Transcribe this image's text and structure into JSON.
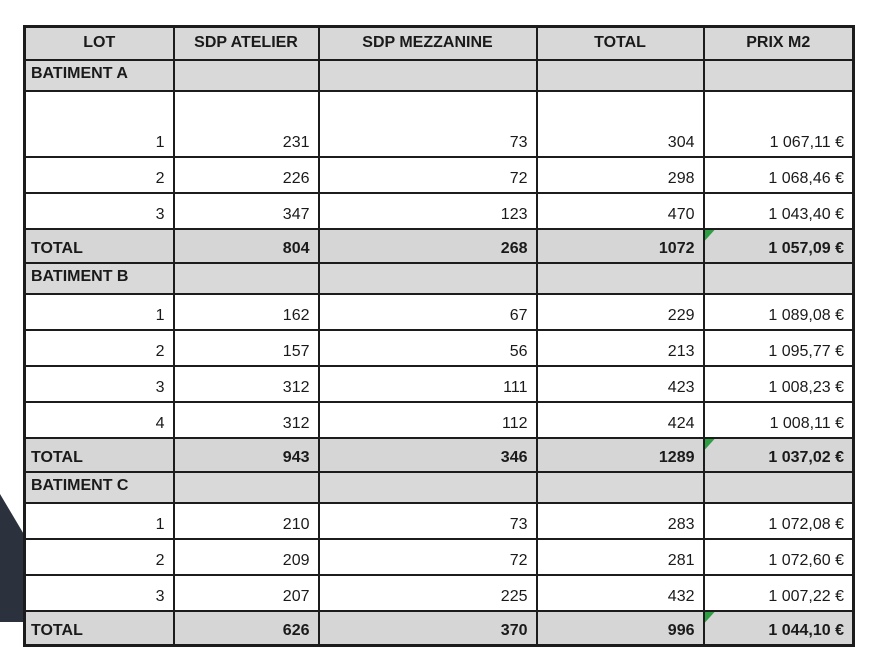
{
  "table": {
    "columns": [
      "LOT",
      "SDP ATELIER",
      "SDP MEZZANINE",
      "TOTAL",
      "PRIX M2"
    ],
    "rows": [
      {
        "type": "section",
        "cells": [
          "BATIMENT A",
          "",
          "",
          "",
          ""
        ]
      },
      {
        "type": "data",
        "tall": true,
        "cells": [
          "1",
          "231",
          "73",
          "304",
          "1 067,11 €"
        ]
      },
      {
        "type": "data",
        "cells": [
          "2",
          "226",
          "72",
          "298",
          "1 068,46 €"
        ]
      },
      {
        "type": "data",
        "cells": [
          "3",
          "347",
          "123",
          "470",
          "1 043,40 €"
        ]
      },
      {
        "type": "total",
        "flag": true,
        "cells": [
          "TOTAL",
          "804",
          "268",
          "1072",
          "1 057,09 €"
        ]
      },
      {
        "type": "section",
        "cells": [
          "BATIMENT B",
          "",
          "",
          "",
          ""
        ]
      },
      {
        "type": "data",
        "cells": [
          "1",
          "162",
          "67",
          "229",
          "1 089,08 €"
        ]
      },
      {
        "type": "data",
        "cells": [
          "2",
          "157",
          "56",
          "213",
          "1 095,77 €"
        ]
      },
      {
        "type": "data",
        "cells": [
          "3",
          "312",
          "111",
          "423",
          "1 008,23 €"
        ]
      },
      {
        "type": "data",
        "cells": [
          "4",
          "312",
          "112",
          "424",
          "1 008,11 €"
        ]
      },
      {
        "type": "total",
        "flag": true,
        "cells": [
          "TOTAL",
          "943",
          "346",
          "1289",
          "1 037,02 €"
        ]
      },
      {
        "type": "section",
        "cells": [
          "BATIMENT C",
          "",
          "",
          "",
          ""
        ]
      },
      {
        "type": "data",
        "cells": [
          "1",
          "210",
          "73",
          "283",
          "1 072,08 €"
        ]
      },
      {
        "type": "data",
        "cells": [
          "2",
          "209",
          "72",
          "281",
          "1 072,60 €"
        ]
      },
      {
        "type": "data",
        "cells": [
          "3",
          "207",
          "225",
          "432",
          "1 007,22 €"
        ]
      },
      {
        "type": "total",
        "flag": true,
        "cells": [
          "TOTAL",
          "626",
          "370",
          "996",
          "1 044,10 €"
        ]
      }
    ]
  },
  "colors": {
    "header_bg": "#d8d8d8",
    "section_bg": "#d9d9d9",
    "total_bg": "#d6d6d6",
    "border": "#1c1c1c",
    "flag_green": "#2e9e44",
    "corner_shape": "#2b323d"
  }
}
